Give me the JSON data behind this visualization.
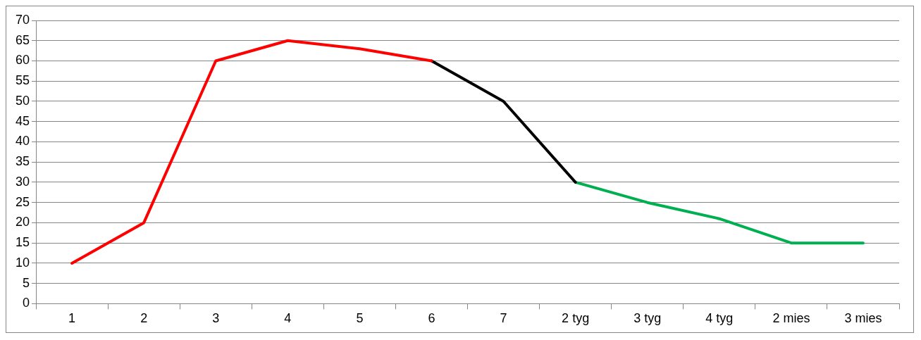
{
  "chart_data": {
    "type": "line",
    "categories": [
      "1",
      "2",
      "3",
      "4",
      "5",
      "6",
      "7",
      "2 tyg",
      "3 tyg",
      "4 tyg",
      "2 mies",
      "3 mies"
    ],
    "series": [
      {
        "color": "#ff0000",
        "values": [
          10,
          20,
          60,
          65,
          63,
          60,
          null,
          null,
          null,
          null,
          null,
          null
        ]
      },
      {
        "color": "#000000",
        "values": [
          null,
          null,
          null,
          null,
          null,
          60,
          50,
          30,
          null,
          null,
          null,
          null
        ]
      },
      {
        "color": "#00b050",
        "values": [
          null,
          null,
          null,
          null,
          null,
          null,
          null,
          30,
          25,
          21,
          15,
          15
        ]
      }
    ],
    "ylim": [
      0,
      70
    ],
    "yticks": [
      0,
      5,
      10,
      15,
      20,
      25,
      30,
      35,
      40,
      45,
      50,
      55,
      60,
      65,
      70
    ],
    "grid": "y",
    "legend": false,
    "marker": "none",
    "line_style": "solid"
  }
}
